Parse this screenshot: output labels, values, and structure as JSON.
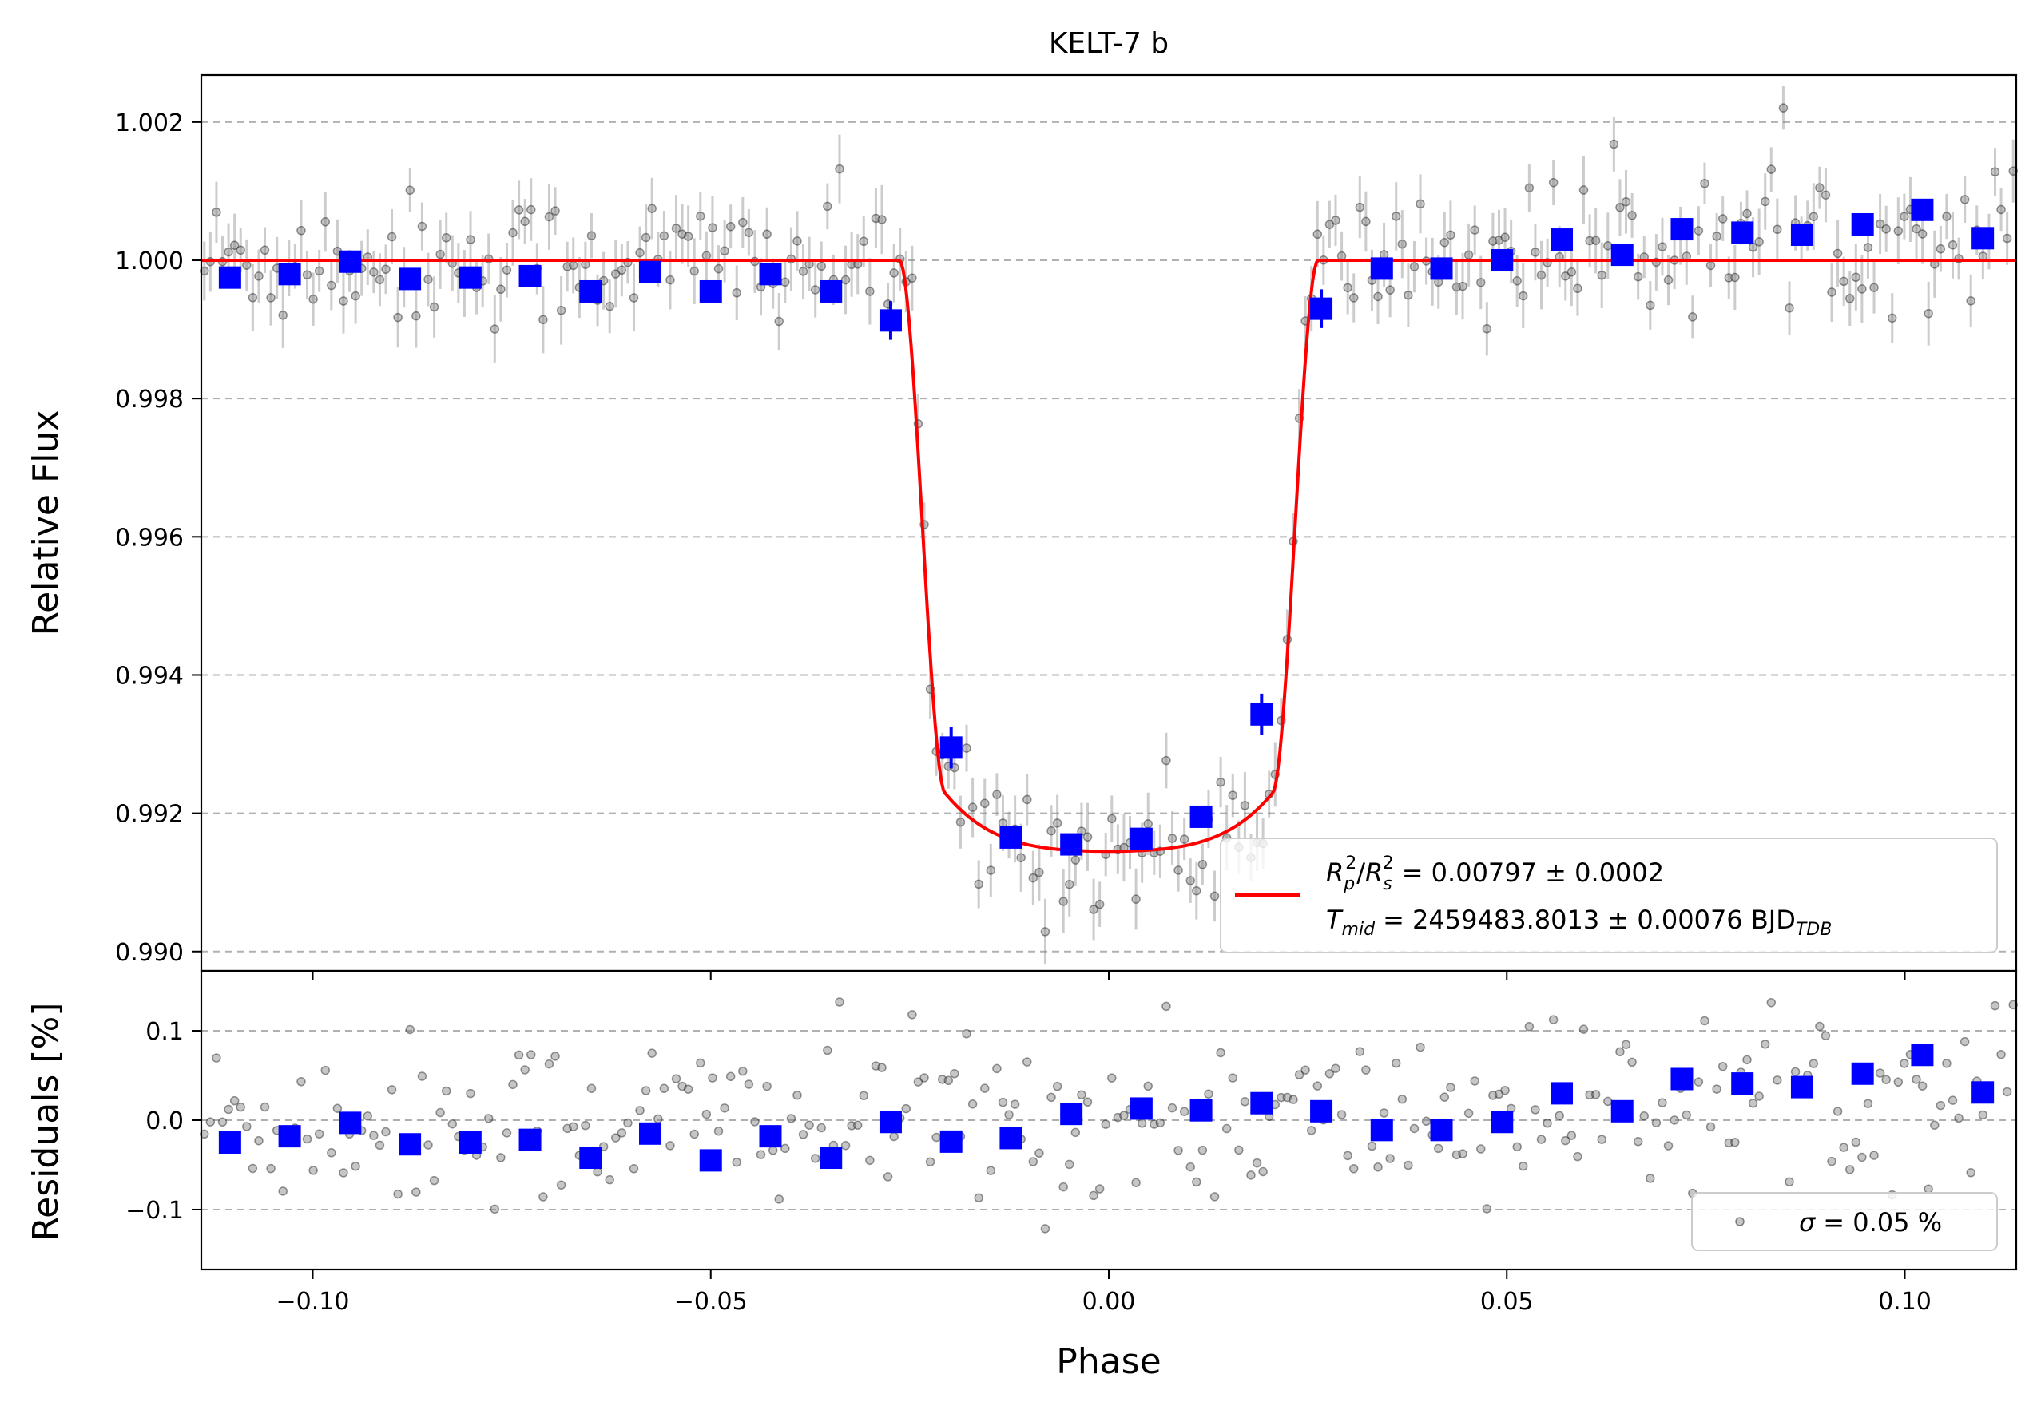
{
  "chart_data": [
    {
      "type": "scatter",
      "title": "KELT-7 b",
      "xlabel": "",
      "ylabel": "Relative Flux",
      "xlim": [
        -0.114,
        0.114
      ],
      "ylim": [
        0.98972,
        1.00268
      ],
      "xticks": [
        -0.1,
        -0.05,
        0.0,
        0.05,
        0.1
      ],
      "xtick_labels": [
        "",
        "",
        "",
        "",
        ""
      ],
      "yticks": [
        0.99,
        0.992,
        0.994,
        0.996,
        0.998,
        1.0,
        1.002
      ],
      "ytick_labels": [
        "0.990",
        "0.992",
        "0.994",
        "0.996",
        "0.998",
        "1.000",
        "1.002"
      ],
      "grid": "horizontal dashed",
      "legend": {
        "placement": "lower-right",
        "line1_value": "= 0.00797 ± 0.0002",
        "line2_value": "= 2459483.8013 ± 0.00076 BJD",
        "line2_subscript": "TDB",
        "rp_sub": "p",
        "rs_sub": "s",
        "tmid_sub": "mid",
        "sup": "2"
      },
      "model": {
        "name": "transit model",
        "color": "#ff0000",
        "baseline": 1.0,
        "depth_min": 0.99145,
        "t1": -0.0263,
        "t2": -0.0205,
        "t3": 0.0205,
        "t4": 0.0263
      },
      "binned": {
        "color": "#0000ff",
        "x": [
          -0.1104,
          -0.1029,
          -0.0953,
          -0.0878,
          -0.0802,
          -0.0727,
          -0.0651,
          -0.0576,
          -0.05,
          -0.0425,
          -0.0349,
          -0.0274,
          -0.0198,
          -0.0123,
          -0.0047,
          0.0041,
          0.0116,
          0.0192,
          0.0267,
          0.0343,
          0.0418,
          0.0494,
          0.0569,
          0.0645,
          0.072,
          0.0796,
          0.0871,
          0.0947,
          0.1022,
          0.1098
        ],
        "y": [
          0.99975,
          0.9998,
          0.99998,
          0.99973,
          0.99975,
          0.99977,
          0.99955,
          0.99983,
          0.99955,
          0.9998,
          0.99955,
          0.99913,
          0.99295,
          0.99165,
          0.99155,
          0.99163,
          0.99195,
          0.99343,
          0.9993,
          0.99988,
          0.99988,
          1.0,
          1.0003,
          1.00008,
          1.00045,
          1.0004,
          1.00037,
          1.00052,
          1.00073,
          1.00032
        ],
        "yerr": [
          0.00012,
          0.00012,
          0.00012,
          0.00012,
          0.00012,
          0.00012,
          0.00012,
          0.00012,
          0.00012,
          0.00012,
          0.00012,
          0.00028,
          0.0003,
          0.00012,
          0.00012,
          0.00012,
          0.00012,
          0.0003,
          0.00028,
          0.00012,
          0.00012,
          0.00012,
          0.00012,
          0.00012,
          0.00012,
          0.00012,
          0.00012,
          0.00012,
          0.00012,
          0.00012
        ]
      },
      "raw": {
        "color": "#808080",
        "note_count": 300,
        "scatter_percent": 0.05
      }
    },
    {
      "type": "scatter",
      "title": "",
      "xlabel": "Phase",
      "ylabel": "Residuals [%]",
      "xlim": [
        -0.114,
        0.114
      ],
      "ylim": [
        -0.167,
        0.167
      ],
      "xticks": [
        -0.1,
        -0.05,
        0.0,
        0.05,
        0.1
      ],
      "xtick_labels": [
        "−0.10",
        "−0.05",
        "0.00",
        "0.05",
        "0.10"
      ],
      "yticks": [
        -0.1,
        0.0,
        0.1
      ],
      "ytick_labels": [
        "−0.1",
        "0.0",
        "0.1"
      ],
      "grid": "horizontal dashed",
      "legend": {
        "placement": "lower-right",
        "sigma_symbol": "σ",
        "sigma_text": "= 0.05 %"
      },
      "binned": {
        "color": "#0000ff",
        "x": [
          -0.1104,
          -0.1029,
          -0.0953,
          -0.0878,
          -0.0802,
          -0.0727,
          -0.0651,
          -0.0576,
          -0.05,
          -0.0425,
          -0.0349,
          -0.0274,
          -0.0198,
          -0.0123,
          -0.0047,
          0.0041,
          0.0116,
          0.0192,
          0.0267,
          0.0343,
          0.0418,
          0.0494,
          0.0569,
          0.0645,
          0.072,
          0.0796,
          0.0871,
          0.0947,
          0.1022,
          0.1098
        ],
        "y": [
          -0.025,
          -0.018,
          -0.003,
          -0.027,
          -0.025,
          -0.022,
          -0.042,
          -0.015,
          -0.045,
          -0.018,
          -0.042,
          -0.002,
          -0.024,
          -0.02,
          0.007,
          0.013,
          0.011,
          0.019,
          0.01,
          -0.011,
          -0.011,
          -0.002,
          0.03,
          0.01,
          0.046,
          0.041,
          0.037,
          0.052,
          0.073,
          0.031
        ]
      }
    }
  ]
}
